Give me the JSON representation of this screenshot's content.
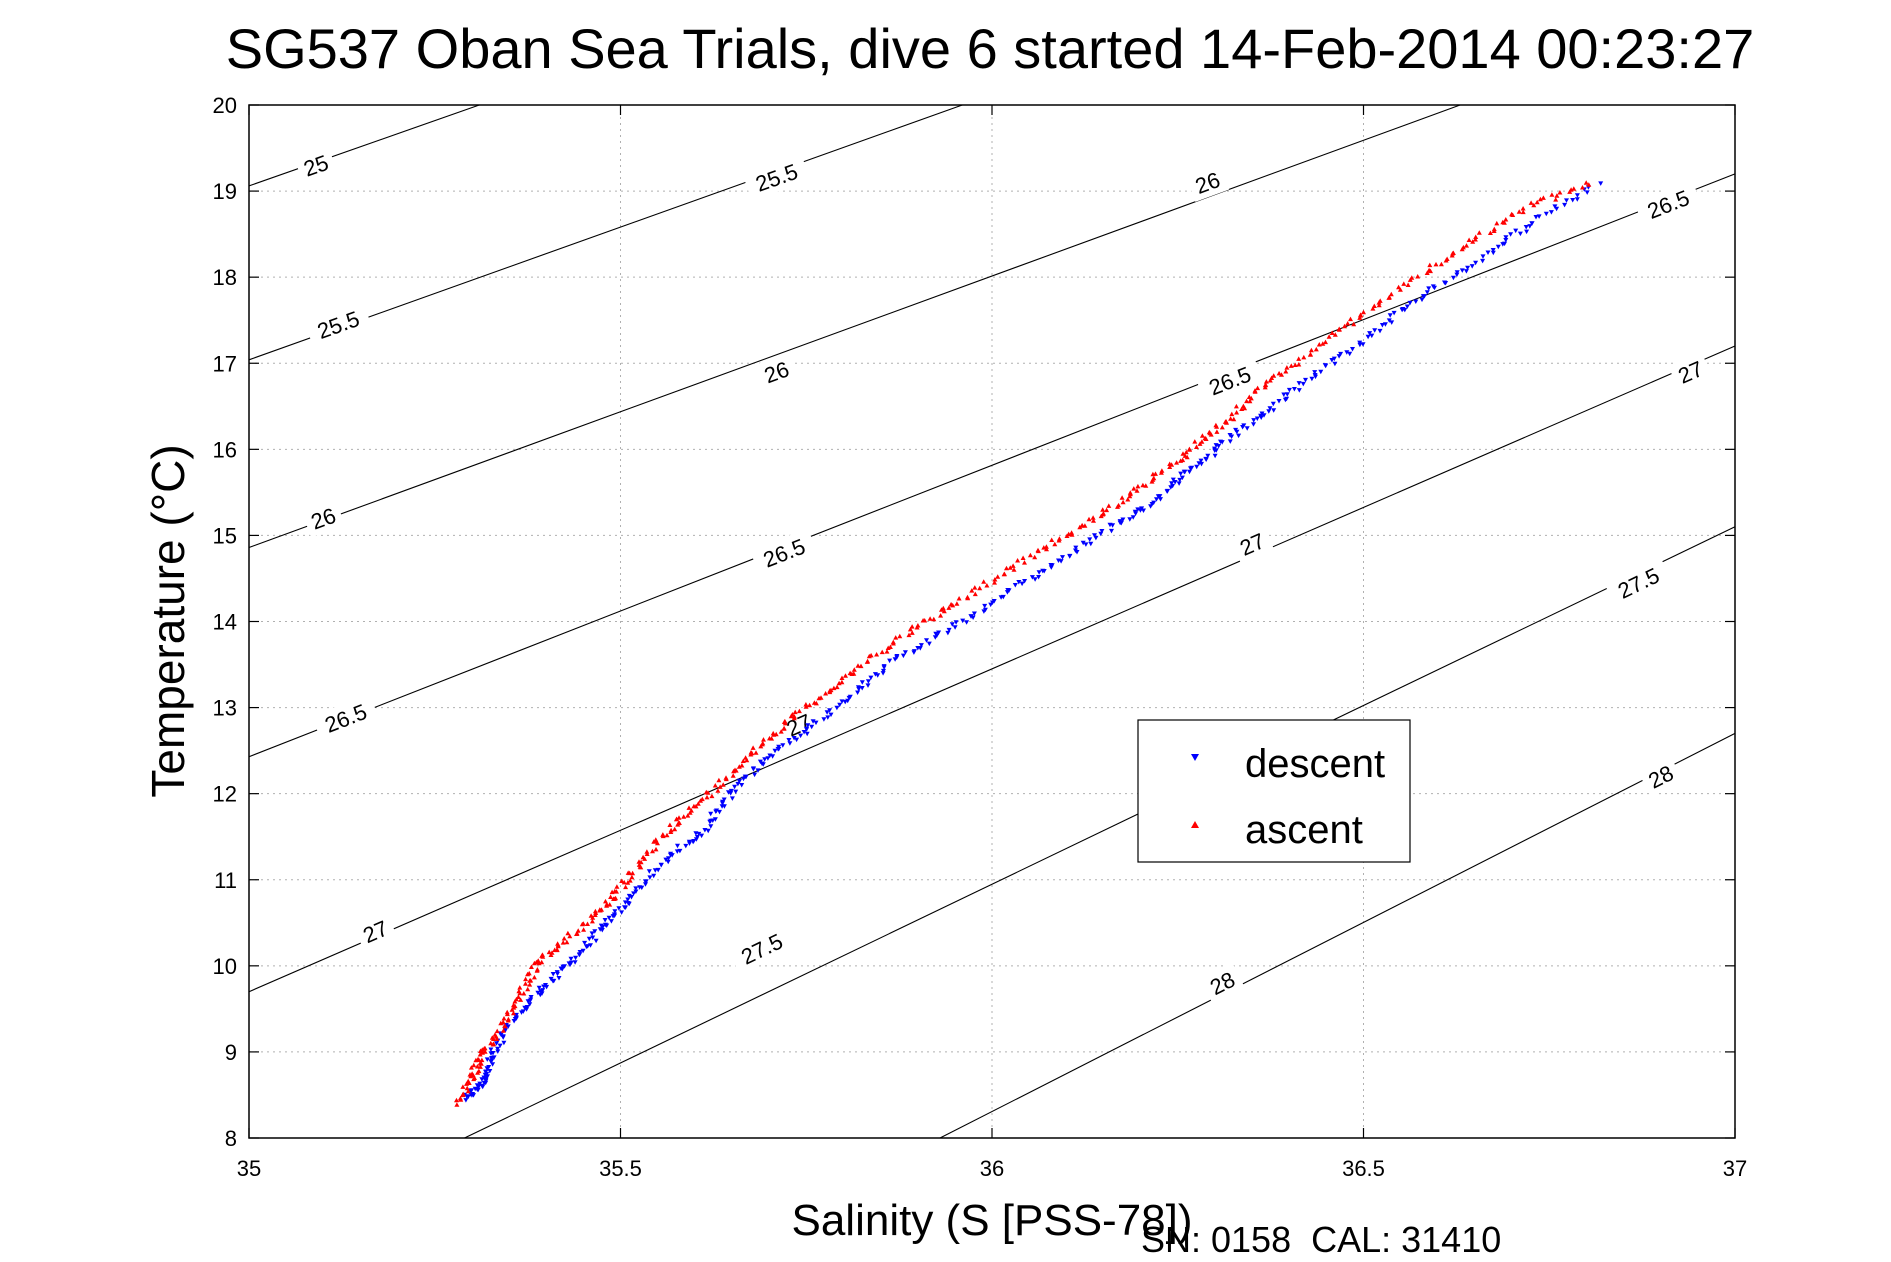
{
  "chart_data": {
    "type": "scatter",
    "title": "SG537 Oban Sea Trials, dive 6 started 14-Feb-2014 00:23:27",
    "xlabel": "Salinity (S [PSS-78])",
    "ylabel": "Temperature (°C)",
    "xlim": [
      35,
      37
    ],
    "ylim": [
      8,
      20
    ],
    "xticks": [
      "35",
      "35.5",
      "36",
      "36.5",
      "37"
    ],
    "yticks": [
      "8",
      "9",
      "10",
      "11",
      "12",
      "13",
      "14",
      "15",
      "16",
      "17",
      "18",
      "19",
      "20"
    ],
    "grid": true,
    "legend_position": "center-right",
    "footer": "SN: 0158  CAL: 31410",
    "series": [
      {
        "name": "descent",
        "color": "#0000ff",
        "marker": "triangle-down",
        "points": [
          [
            35.29,
            8.45
          ],
          [
            35.31,
            8.6
          ],
          [
            35.32,
            8.75
          ],
          [
            35.33,
            9.0
          ],
          [
            35.35,
            9.3
          ],
          [
            35.38,
            9.6
          ],
          [
            35.41,
            9.85
          ],
          [
            35.44,
            10.1
          ],
          [
            35.47,
            10.4
          ],
          [
            35.5,
            10.65
          ],
          [
            35.53,
            10.95
          ],
          [
            35.57,
            11.3
          ],
          [
            35.61,
            11.55
          ],
          [
            35.64,
            11.9
          ],
          [
            35.67,
            12.2
          ],
          [
            35.71,
            12.5
          ],
          [
            35.76,
            12.8
          ],
          [
            35.81,
            13.15
          ],
          [
            35.86,
            13.5
          ],
          [
            35.92,
            13.8
          ],
          [
            35.98,
            14.1
          ],
          [
            36.04,
            14.45
          ],
          [
            36.1,
            14.75
          ],
          [
            36.16,
            15.1
          ],
          [
            36.21,
            15.35
          ],
          [
            36.25,
            15.65
          ],
          [
            36.29,
            15.9
          ],
          [
            36.33,
            16.2
          ],
          [
            36.38,
            16.5
          ],
          [
            36.43,
            16.85
          ],
          [
            36.49,
            17.2
          ],
          [
            36.55,
            17.6
          ],
          [
            36.61,
            17.95
          ],
          [
            36.68,
            18.35
          ],
          [
            36.74,
            18.7
          ],
          [
            36.82,
            19.1
          ]
        ]
      },
      {
        "name": "ascent",
        "color": "#ff0000",
        "marker": "triangle-up",
        "points": [
          [
            35.28,
            8.4
          ],
          [
            35.3,
            8.7
          ],
          [
            35.31,
            8.9
          ],
          [
            35.33,
            9.15
          ],
          [
            35.35,
            9.45
          ],
          [
            35.37,
            9.75
          ],
          [
            35.39,
            10.05
          ],
          [
            35.42,
            10.25
          ],
          [
            35.46,
            10.55
          ],
          [
            35.49,
            10.8
          ],
          [
            35.52,
            11.1
          ],
          [
            35.55,
            11.45
          ],
          [
            35.58,
            11.7
          ],
          [
            35.62,
            12.0
          ],
          [
            35.66,
            12.35
          ],
          [
            35.7,
            12.65
          ],
          [
            35.74,
            12.95
          ],
          [
            35.79,
            13.25
          ],
          [
            35.84,
            13.6
          ],
          [
            35.9,
            13.95
          ],
          [
            35.96,
            14.25
          ],
          [
            36.02,
            14.6
          ],
          [
            36.08,
            14.9
          ],
          [
            36.14,
            15.2
          ],
          [
            36.19,
            15.5
          ],
          [
            36.24,
            15.8
          ],
          [
            36.28,
            16.1
          ],
          [
            36.32,
            16.35
          ],
          [
            36.36,
            16.7
          ],
          [
            36.41,
            17.0
          ],
          [
            36.47,
            17.4
          ],
          [
            36.53,
            17.75
          ],
          [
            36.6,
            18.15
          ],
          [
            36.66,
            18.5
          ],
          [
            36.73,
            18.85
          ],
          [
            36.81,
            19.1
          ]
        ]
      }
    ],
    "isopycnals": [
      {
        "label": "25",
        "points": [
          [
            35.0,
            19.06
          ],
          [
            35.31,
            20.0
          ]
        ]
      },
      {
        "label": "25.5",
        "points": [
          [
            35.0,
            17.04
          ],
          [
            35.96,
            20.0
          ]
        ]
      },
      {
        "label": "25.5",
        "points": [
          [
            35.0,
            17.04
          ],
          [
            35.96,
            20.0
          ]
        ]
      },
      {
        "label": "26",
        "points": [
          [
            35.0,
            14.86
          ],
          [
            36.63,
            20.0
          ]
        ]
      },
      {
        "label": "26",
        "points": [
          [
            35.0,
            14.86
          ],
          [
            36.63,
            20.0
          ]
        ]
      },
      {
        "label": "26",
        "points": [
          [
            35.0,
            14.86
          ],
          [
            36.63,
            20.0
          ]
        ]
      },
      {
        "label": "26.5",
        "points": [
          [
            35.0,
            12.43
          ],
          [
            37.0,
            19.2
          ]
        ]
      },
      {
        "label": "26.5",
        "points": [
          [
            35.0,
            12.43
          ],
          [
            37.0,
            19.2
          ]
        ]
      },
      {
        "label": "26.5",
        "points": [
          [
            35.0,
            12.43
          ],
          [
            37.0,
            19.2
          ]
        ]
      },
      {
        "label": "26.5",
        "points": [
          [
            35.0,
            12.43
          ],
          [
            37.0,
            19.2
          ]
        ]
      },
      {
        "label": "27",
        "points": [
          [
            35.0,
            9.7
          ],
          [
            37.0,
            17.2
          ]
        ]
      },
      {
        "label": "27",
        "points": [
          [
            35.0,
            9.7
          ],
          [
            37.0,
            17.2
          ]
        ]
      },
      {
        "label": "27",
        "points": [
          [
            35.0,
            9.7
          ],
          [
            37.0,
            17.2
          ]
        ]
      },
      {
        "label": "27",
        "points": [
          [
            35.0,
            9.7
          ],
          [
            37.0,
            17.2
          ]
        ]
      },
      {
        "label": "27.5",
        "points": [
          [
            35.29,
            8.0
          ],
          [
            37.0,
            15.1
          ]
        ]
      },
      {
        "label": "27.5",
        "points": [
          [
            35.29,
            8.0
          ],
          [
            37.0,
            15.1
          ]
        ]
      },
      {
        "label": "28",
        "points": [
          [
            35.93,
            8.0
          ],
          [
            37.0,
            12.7
          ]
        ]
      },
      {
        "label": "28",
        "points": [
          [
            35.93,
            8.0
          ],
          [
            37.0,
            12.7
          ]
        ]
      }
    ],
    "contour_labels": [
      {
        "text": "25",
        "x": 35.09,
        "y": 19.3
      },
      {
        "text": "25.5",
        "x": 35.71,
        "y": 19.16
      },
      {
        "text": "25.5",
        "x": 35.12,
        "y": 17.45
      },
      {
        "text": "26",
        "x": 36.29,
        "y": 19.1
      },
      {
        "text": "26",
        "x": 35.71,
        "y": 16.9
      },
      {
        "text": "26",
        "x": 35.1,
        "y": 15.2
      },
      {
        "text": "26.5",
        "x": 36.91,
        "y": 18.85
      },
      {
        "text": "26.5",
        "x": 36.32,
        "y": 16.8
      },
      {
        "text": "26.5",
        "x": 35.72,
        "y": 14.8
      },
      {
        "text": "26.5",
        "x": 35.13,
        "y": 12.88
      },
      {
        "text": "27",
        "x": 36.94,
        "y": 16.9
      },
      {
        "text": "27",
        "x": 36.35,
        "y": 14.9
      },
      {
        "text": "27",
        "x": 35.74,
        "y": 12.8
      },
      {
        "text": "27",
        "x": 35.17,
        "y": 10.4
      },
      {
        "text": "27.5",
        "x": 36.87,
        "y": 14.45
      },
      {
        "text": "27.5",
        "x": 35.69,
        "y": 10.2
      },
      {
        "text": "28",
        "x": 36.9,
        "y": 12.2
      },
      {
        "text": "28",
        "x": 36.31,
        "y": 9.8
      }
    ]
  }
}
